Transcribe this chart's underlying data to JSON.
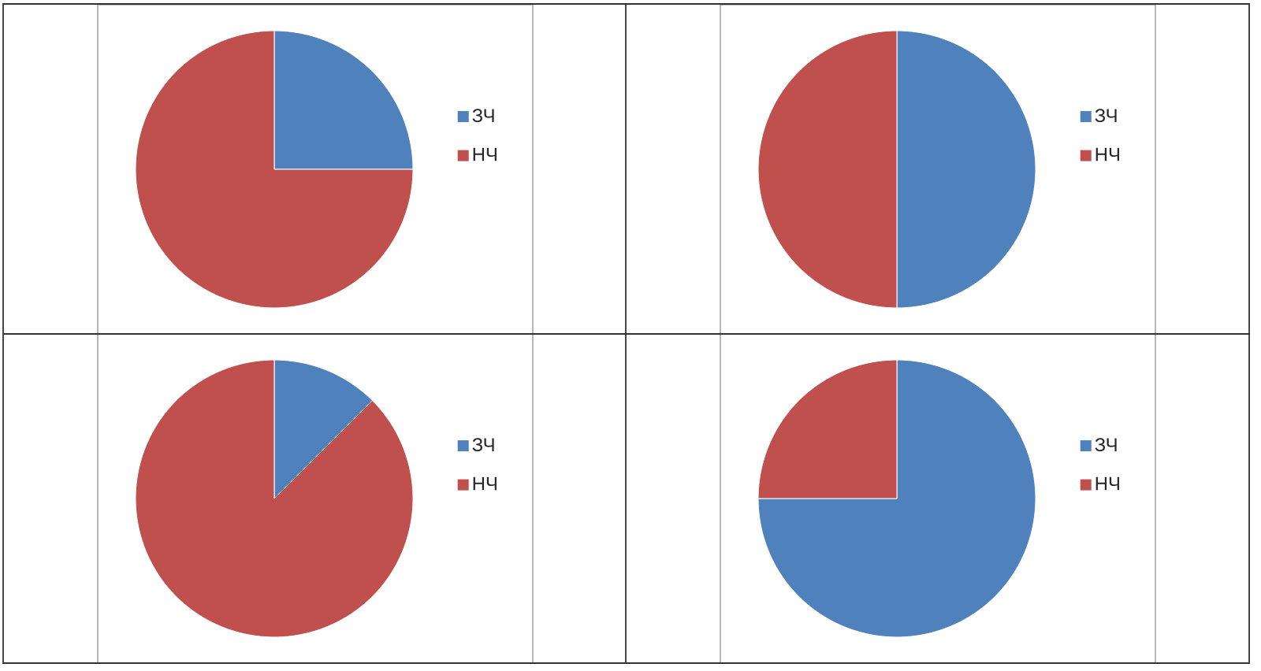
{
  "chart_data": [
    {
      "type": "pie",
      "categories": [
        "ЗЧ",
        "НЧ"
      ],
      "values": [
        25,
        75
      ],
      "colors": [
        "#4f81bd",
        "#c0504d"
      ],
      "legend": "right"
    },
    {
      "type": "pie",
      "categories": [
        "ЗЧ",
        "НЧ"
      ],
      "values": [
        50,
        50
      ],
      "colors": [
        "#4f81bd",
        "#c0504d"
      ],
      "legend": "right"
    },
    {
      "type": "pie",
      "categories": [
        "ЗЧ",
        "НЧ"
      ],
      "values": [
        12.5,
        87.5
      ],
      "colors": [
        "#4f81bd",
        "#c0504d"
      ],
      "legend": "right"
    },
    {
      "type": "pie",
      "categories": [
        "ЗЧ",
        "НЧ"
      ],
      "values": [
        75,
        25
      ],
      "colors": [
        "#4f81bd",
        "#c0504d"
      ],
      "legend": "right"
    }
  ]
}
